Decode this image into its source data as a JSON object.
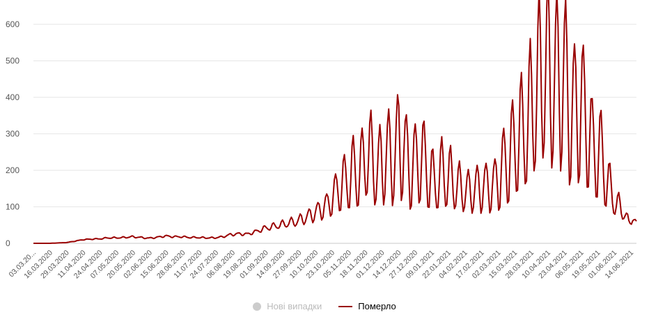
{
  "legend": {
    "items": [
      {
        "label": "Нові випадки",
        "color": "#cccccc",
        "visible": false
      },
      {
        "label": "Померло",
        "color": "#990000",
        "visible": true
      }
    ]
  },
  "chart_data": {
    "type": "line",
    "ylim": [
      0,
      600
    ],
    "yticks": [
      0,
      100,
      200,
      300,
      400,
      500,
      600
    ],
    "xlim": [
      "2020-03-03",
      "2021-06-23"
    ],
    "x_tick_labels": [
      "03.03.20...",
      "16.03.2020",
      "29.03.2020",
      "11.04.2020",
      "24.04.2020",
      "07.05.2020",
      "20.05.2020",
      "02.06.2020",
      "15.06.2020",
      "28.06.2020",
      "11.07.2020",
      "24.07.2020",
      "06.08.2020",
      "19.08.2020",
      "01.09.2020",
      "14.09.2020",
      "27.09.2020",
      "10.10.2020",
      "23.10.2020",
      "05.11.2020",
      "18.11.2020",
      "01.12.2020",
      "14.12.2020",
      "27.12.2020",
      "09.01.2021",
      "22.01.2021",
      "04.02.2021",
      "17.02.2021",
      "02.03.2021",
      "15.03.2021",
      "28.03.2021",
      "10.04.2021",
      "23.04.2021",
      "06.05.2021",
      "19.05.2021",
      "01.06.2021",
      "14.06.2021"
    ],
    "grid": true,
    "legend_position": "bottom-center",
    "series": [
      {
        "name": "Померло",
        "color": "#990000",
        "points": [
          [
            "2020-03-03",
            0
          ],
          [
            "2020-03-16",
            0
          ],
          [
            "2020-03-29",
            2
          ],
          [
            "2020-04-05",
            6
          ],
          [
            "2020-04-11",
            10
          ],
          [
            "2020-04-20",
            12
          ],
          [
            "2020-04-24",
            12
          ],
          [
            "2020-05-01",
            15
          ],
          [
            "2020-05-07",
            15
          ],
          [
            "2020-05-14",
            16
          ],
          [
            "2020-05-20",
            18
          ],
          [
            "2020-05-27",
            16
          ],
          [
            "2020-06-02",
            14
          ],
          [
            "2020-06-08",
            16
          ],
          [
            "2020-06-15",
            20
          ],
          [
            "2020-06-22",
            18
          ],
          [
            "2020-06-28",
            18
          ],
          [
            "2020-07-05",
            16
          ],
          [
            "2020-07-11",
            16
          ],
          [
            "2020-07-18",
            15
          ],
          [
            "2020-07-24",
            15
          ],
          [
            "2020-07-31",
            18
          ],
          [
            "2020-08-06",
            24
          ],
          [
            "2020-08-13",
            26
          ],
          [
            "2020-08-19",
            25
          ],
          [
            "2020-08-26",
            32
          ],
          [
            "2020-09-01",
            40
          ],
          [
            "2020-09-07",
            45
          ],
          [
            "2020-09-14",
            50
          ],
          [
            "2020-09-20",
            55
          ],
          [
            "2020-09-27",
            60
          ],
          [
            "2020-10-04",
            70
          ],
          [
            "2020-10-10",
            80
          ],
          [
            "2020-10-17",
            95
          ],
          [
            "2020-10-23",
            110
          ],
          [
            "2020-10-30",
            150
          ],
          [
            "2020-11-05",
            170
          ],
          [
            "2020-11-12",
            195
          ],
          [
            "2020-11-18",
            200
          ],
          [
            "2020-11-21",
            258
          ],
          [
            "2020-11-25",
            230
          ],
          [
            "2020-12-01",
            200
          ],
          [
            "2020-12-07",
            240
          ],
          [
            "2020-12-14",
            230
          ],
          [
            "2020-12-17",
            285
          ],
          [
            "2020-12-21",
            250
          ],
          [
            "2020-12-27",
            200
          ],
          [
            "2021-01-03",
            240
          ],
          [
            "2021-01-09",
            200
          ],
          [
            "2021-01-15",
            160
          ],
          [
            "2021-01-22",
            200
          ],
          [
            "2021-01-28",
            170
          ],
          [
            "2021-02-04",
            150
          ],
          [
            "2021-02-11",
            140
          ],
          [
            "2021-02-17",
            150
          ],
          [
            "2021-02-24",
            155
          ],
          [
            "2021-03-02",
            155
          ],
          [
            "2021-03-06",
            185
          ],
          [
            "2021-03-12",
            220
          ],
          [
            "2021-03-15",
            240
          ],
          [
            "2021-03-20",
            280
          ],
          [
            "2021-03-28",
            320
          ],
          [
            "2021-04-03",
            390
          ],
          [
            "2021-04-07",
            440
          ],
          [
            "2021-04-10",
            480
          ],
          [
            "2021-04-14",
            470
          ],
          [
            "2021-04-18",
            440
          ],
          [
            "2021-04-23",
            450
          ],
          [
            "2021-04-28",
            440
          ],
          [
            "2021-05-02",
            340
          ],
          [
            "2021-05-06",
            370
          ],
          [
            "2021-05-12",
            360
          ],
          [
            "2021-05-16",
            310
          ],
          [
            "2021-05-19",
            260
          ],
          [
            "2021-05-24",
            250
          ],
          [
            "2021-05-28",
            220
          ],
          [
            "2021-06-01",
            160
          ],
          [
            "2021-06-06",
            110
          ],
          [
            "2021-06-10",
            100
          ],
          [
            "2021-06-14",
            80
          ],
          [
            "2021-06-17",
            55
          ],
          [
            "2021-06-20",
            75
          ],
          [
            "2021-06-23",
            50
          ]
        ]
      }
    ]
  }
}
